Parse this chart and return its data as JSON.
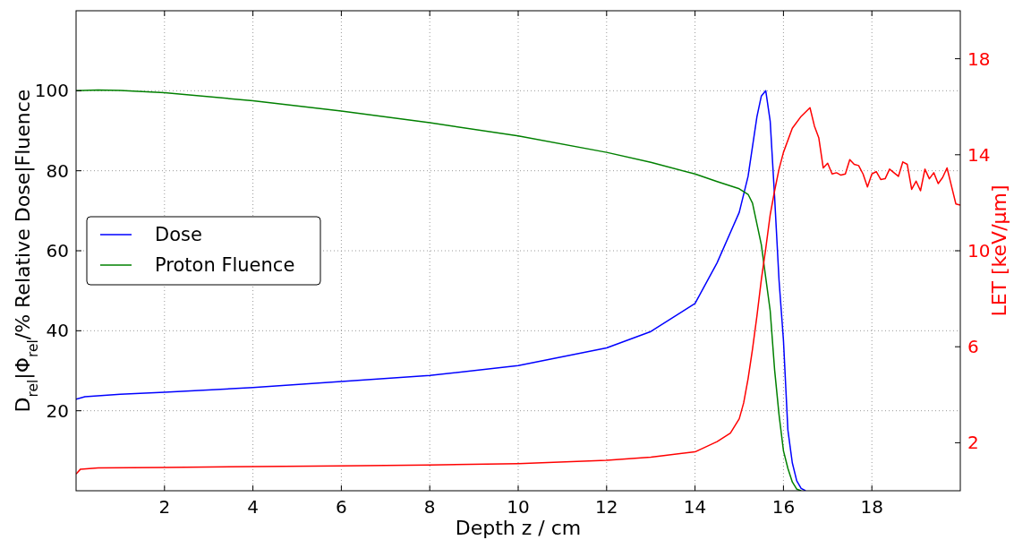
{
  "chart_data": {
    "type": "line",
    "xlabel": "Depth z / cm",
    "ylabel": "D$_{rel}$|Φ$_{rel}$/% Relative Dose|Fluence",
    "y2label": "LET  [keV/μm]",
    "xlim": [
      0,
      20
    ],
    "xticks": [
      2,
      4,
      6,
      8,
      10,
      12,
      14,
      16,
      18
    ],
    "ylim": [
      0,
      120
    ],
    "yticks": [
      20,
      40,
      60,
      80,
      100
    ],
    "y2lim": [
      0,
      20
    ],
    "y2ticks": [
      2,
      6,
      10,
      14,
      18
    ],
    "grid": true,
    "legend": "left",
    "line_style": "solid",
    "marker": "none",
    "series": [
      {
        "name": "Dose",
        "color": "#0000ff",
        "x": [
          0,
          0.2,
          1,
          2,
          4,
          6,
          8,
          10,
          12,
          13,
          14,
          14.5,
          15,
          15.2,
          15.4,
          15.5,
          15.6,
          15.7,
          15.8,
          15.9,
          16,
          16.1,
          16.2,
          16.3,
          16.4,
          16.5
        ],
        "values": [
          22.9,
          23.5,
          24.1,
          24.6,
          25.8,
          27.3,
          28.8,
          31.3,
          35.7,
          39.8,
          46.8,
          57,
          69.6,
          78.6,
          93.5,
          98.7,
          100,
          92.4,
          73.4,
          52.6,
          37.6,
          15.2,
          7,
          2.5,
          0.6,
          0
        ]
      },
      {
        "name": "Proton Fluence",
        "color": "#008000",
        "x": [
          0,
          0.5,
          1,
          2,
          4,
          6,
          8,
          10,
          12,
          13,
          14,
          14.5,
          15,
          15.2,
          15.3,
          15.4,
          15.5,
          15.6,
          15.7,
          15.8,
          15.9,
          16,
          16.1,
          16.2,
          16.3,
          16.4
        ],
        "values": [
          100,
          100.2,
          100.1,
          99.5,
          97.5,
          94.9,
          92,
          88.7,
          84.6,
          82.1,
          79.2,
          77.3,
          75.5,
          74.1,
          71.9,
          66.7,
          61.5,
          53.2,
          45,
          30.2,
          19,
          10,
          5.6,
          2.2,
          0.4,
          0
        ]
      },
      {
        "color": "#ff0000",
        "axis": "y2",
        "x": [
          0,
          0.1,
          0.5,
          2,
          6,
          8,
          10,
          12,
          13,
          14,
          14.5,
          14.8,
          15,
          15.1,
          15.2,
          15.3,
          15.4,
          15.5,
          15.6,
          15.7,
          15.8,
          15.9,
          16,
          16.2,
          16.4,
          16.6,
          16.7,
          16.8,
          16.9,
          17,
          17.1,
          17.2,
          17.3,
          17.4,
          17.5,
          17.6,
          17.7,
          17.8,
          17.9,
          18,
          18.1,
          18.2,
          18.3,
          18.4,
          18.5,
          18.6,
          18.7,
          18.8,
          18.9,
          19,
          19.1,
          19.2,
          19.3,
          19.4,
          19.5,
          19.6,
          19.7,
          19.8,
          19.9,
          20
        ],
        "values": [
          0.7,
          0.9,
          0.95,
          0.97,
          1.04,
          1.07,
          1.13,
          1.27,
          1.4,
          1.62,
          2.05,
          2.4,
          3,
          3.66,
          4.67,
          5.9,
          7.28,
          8.8,
          10.1,
          11.5,
          12.5,
          13.4,
          14.1,
          15.1,
          15.6,
          15.96,
          15.2,
          14.7,
          13.45,
          13.65,
          13.2,
          13.25,
          13.15,
          13.2,
          13.8,
          13.6,
          13.55,
          13.2,
          12.66,
          13.2,
          13.3,
          12.97,
          13,
          13.4,
          13.25,
          13.1,
          13.7,
          13.6,
          12.56,
          12.9,
          12.5,
          13.4,
          13,
          13.25,
          12.8,
          13.05,
          13.45,
          12.7,
          11.95,
          11.9
        ]
      }
    ]
  }
}
